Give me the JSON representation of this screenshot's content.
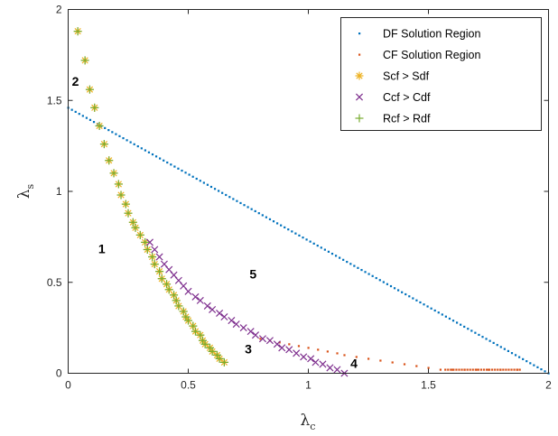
{
  "chart_data": {
    "type": "scatter",
    "title": "",
    "xlabel": "λ",
    "xlabel_sub": "c",
    "ylabel": "λ",
    "ylabel_sub": "s",
    "xlim": [
      0,
      2
    ],
    "ylim": [
      0,
      2
    ],
    "xticks": [
      0,
      0.5,
      1,
      1.5,
      2
    ],
    "yticks": [
      0,
      0.5,
      1,
      1.5,
      2
    ],
    "xtick_labels": [
      "0",
      "0.5",
      "1",
      "1.5",
      "2"
    ],
    "ytick_labels": [
      "0",
      "0.5",
      "1",
      "1.5",
      "2"
    ],
    "grid": false,
    "legend_position": "top-right",
    "colors": {
      "df": "#0072bd",
      "cf": "#d95319",
      "scf": "#edb120",
      "ccf": "#7e2f8e",
      "rcf": "#77ac30"
    },
    "series": [
      {
        "name": "DF Solution Region",
        "marker": "dot",
        "color": "#0072bd",
        "line": {
          "x0": 0,
          "y0": 1.46,
          "x1": 2.0,
          "y1": 0.0,
          "count": 132
        }
      },
      {
        "name": "CF Solution Region",
        "marker": "dot",
        "color": "#d95319",
        "x": [
          0.8,
          0.84,
          0.88,
          0.92,
          0.96,
          1.0,
          1.04,
          1.08,
          1.12,
          1.15,
          1.2,
          1.25,
          1.3,
          1.35,
          1.4,
          1.45,
          1.5,
          1.55,
          1.6,
          1.65,
          1.7,
          1.75,
          1.8,
          1.87
        ],
        "y": [
          0.19,
          0.18,
          0.17,
          0.16,
          0.15,
          0.14,
          0.13,
          0.12,
          0.11,
          0.1,
          0.09,
          0.08,
          0.07,
          0.06,
          0.05,
          0.04,
          0.03,
          0.02,
          0.02,
          0.02,
          0.02,
          0.02,
          0.02,
          0.02
        ],
        "hline": {
          "y": 0.02,
          "x0": 1.57,
          "x1": 1.88,
          "count": 28
        }
      },
      {
        "name": "Scf > Sdf",
        "marker": "asterisk",
        "color": "#edb120",
        "x": [
          0.04,
          0.07,
          0.09,
          0.11,
          0.13,
          0.15,
          0.17,
          0.19,
          0.21,
          0.22,
          0.24,
          0.25,
          0.27,
          0.28,
          0.3,
          0.32,
          0.33,
          0.35,
          0.36,
          0.38,
          0.39,
          0.41,
          0.42,
          0.44,
          0.45,
          0.46,
          0.48,
          0.49,
          0.5,
          0.52,
          0.53,
          0.55,
          0.56,
          0.57,
          0.59,
          0.6,
          0.62,
          0.63,
          0.65
        ],
        "y": [
          1.88,
          1.72,
          1.56,
          1.46,
          1.36,
          1.26,
          1.17,
          1.1,
          1.04,
          0.98,
          0.93,
          0.88,
          0.83,
          0.8,
          0.76,
          0.72,
          0.68,
          0.64,
          0.6,
          0.56,
          0.52,
          0.49,
          0.46,
          0.43,
          0.4,
          0.37,
          0.34,
          0.31,
          0.29,
          0.26,
          0.23,
          0.21,
          0.18,
          0.16,
          0.14,
          0.12,
          0.1,
          0.08,
          0.06
        ]
      },
      {
        "name": "Ccf > Cdf",
        "marker": "x",
        "color": "#7e2f8e",
        "x": [
          0.34,
          0.36,
          0.38,
          0.4,
          0.42,
          0.44,
          0.46,
          0.48,
          0.5,
          0.53,
          0.55,
          0.58,
          0.6,
          0.63,
          0.65,
          0.68,
          0.7,
          0.73,
          0.76,
          0.78,
          0.81,
          0.84,
          0.87,
          0.89,
          0.92,
          0.95,
          0.98,
          1.01,
          1.03,
          1.06,
          1.09,
          1.12,
          1.15
        ],
        "y": [
          0.72,
          0.68,
          0.64,
          0.6,
          0.57,
          0.54,
          0.51,
          0.48,
          0.45,
          0.42,
          0.4,
          0.37,
          0.35,
          0.33,
          0.31,
          0.29,
          0.27,
          0.25,
          0.23,
          0.21,
          0.19,
          0.18,
          0.16,
          0.14,
          0.13,
          0.11,
          0.09,
          0.08,
          0.06,
          0.05,
          0.03,
          0.02,
          0.0
        ]
      },
      {
        "name": "Rcf > Rdf",
        "marker": "plus",
        "color": "#77ac30",
        "x": [
          0.04,
          0.07,
          0.09,
          0.11,
          0.13,
          0.15,
          0.17,
          0.19,
          0.21,
          0.22,
          0.24,
          0.25,
          0.27,
          0.28,
          0.3,
          0.32,
          0.33,
          0.35,
          0.36,
          0.38,
          0.39,
          0.41,
          0.42,
          0.44,
          0.45,
          0.46,
          0.48,
          0.49,
          0.5,
          0.52,
          0.53,
          0.55,
          0.56,
          0.57,
          0.59,
          0.6,
          0.62,
          0.63,
          0.65
        ],
        "y": [
          1.88,
          1.72,
          1.56,
          1.46,
          1.36,
          1.26,
          1.17,
          1.1,
          1.04,
          0.98,
          0.93,
          0.88,
          0.83,
          0.8,
          0.76,
          0.72,
          0.68,
          0.64,
          0.6,
          0.56,
          0.52,
          0.49,
          0.46,
          0.43,
          0.4,
          0.37,
          0.34,
          0.31,
          0.29,
          0.26,
          0.23,
          0.21,
          0.18,
          0.16,
          0.14,
          0.12,
          0.1,
          0.08,
          0.06
        ]
      }
    ],
    "annotations": [
      {
        "text": "1",
        "x": 0.14,
        "y": 0.66
      },
      {
        "text": "2",
        "x": 0.03,
        "y": 1.58
      },
      {
        "text": "3",
        "x": 0.75,
        "y": 0.11
      },
      {
        "text": "4",
        "x": 1.19,
        "y": 0.03
      },
      {
        "text": "5",
        "x": 0.77,
        "y": 0.52
      }
    ]
  }
}
